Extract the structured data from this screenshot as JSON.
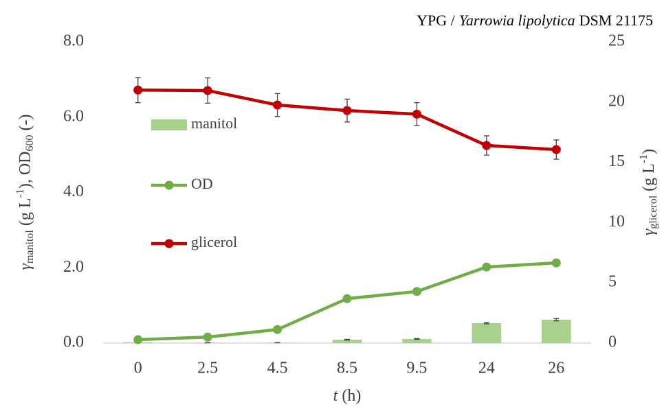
{
  "chart_data": {
    "type": "combo",
    "title": [
      "YPG /",
      "Yarrowia lipolytica",
      "DSM 21175"
    ],
    "x_label": [
      "t",
      "(h)"
    ],
    "y_label": [
      "γ",
      "manitol",
      "(g L",
      "-1",
      "), OD",
      "600",
      "(-)"
    ],
    "y2_label": [
      "γ",
      "glicerol",
      "(g L",
      "-1",
      ")"
    ],
    "categories": [
      "0",
      "2.5",
      "4.5",
      "8.5",
      "9.5",
      "24",
      "26"
    ],
    "ylim": [
      0,
      8
    ],
    "yticks": [
      {
        "value": 0,
        "label": "0.0"
      },
      {
        "value": 2,
        "label": "2.0"
      },
      {
        "value": 4,
        "label": "4.0"
      },
      {
        "value": 6,
        "label": "6.0"
      },
      {
        "value": 8,
        "label": "8.0"
      }
    ],
    "y2lim": [
      0,
      25
    ],
    "y2ticks": [
      0,
      5,
      10,
      15,
      20,
      25
    ],
    "grid": false,
    "legend": "left",
    "series": [
      {
        "name": "manitol",
        "type": "bar",
        "color": "#a9d18e",
        "values": [
          0.02,
          0.01,
          0.01,
          0.09,
          0.11,
          0.53,
          0.62
        ],
        "errors": [
          0.0,
          0.0,
          0.0,
          0.01,
          0.01,
          0.02,
          0.03
        ]
      },
      {
        "name": "OD",
        "type": "line",
        "color": "#70ad47",
        "values": [
          0.09,
          0.16,
          0.36,
          1.18,
          1.37,
          2.02,
          2.13
        ],
        "errors": [
          0.01,
          0.01,
          0.02,
          0.03,
          0.03,
          0.05,
          0.07
        ]
      },
      {
        "name": "glicerol",
        "type": "line",
        "axis": "y2",
        "color": "#c00000",
        "values": [
          21.0,
          20.96,
          19.76,
          19.3,
          19.0,
          16.4,
          16.06
        ],
        "errors": [
          1.05,
          1.05,
          0.95,
          0.95,
          0.95,
          0.8,
          0.8
        ]
      }
    ]
  }
}
